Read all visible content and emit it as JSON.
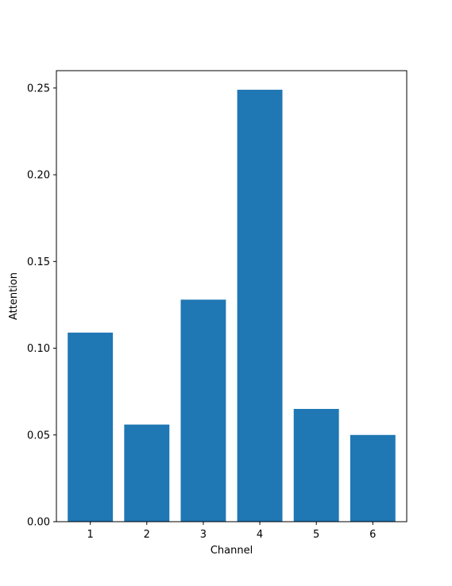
{
  "chart_data": {
    "type": "bar",
    "title": "",
    "xlabel": "Channel",
    "ylabel": "Attention",
    "categories": [
      "1",
      "2",
      "3",
      "4",
      "5",
      "6"
    ],
    "values": [
      0.109,
      0.056,
      0.128,
      0.249,
      0.065,
      0.05
    ],
    "ylim": [
      0,
      0.26
    ],
    "yticks": [
      "0.00",
      "0.05",
      "0.10",
      "0.15",
      "0.20",
      "0.25"
    ],
    "bar_color": "#1f77b4",
    "grid": false,
    "legend": "none"
  }
}
